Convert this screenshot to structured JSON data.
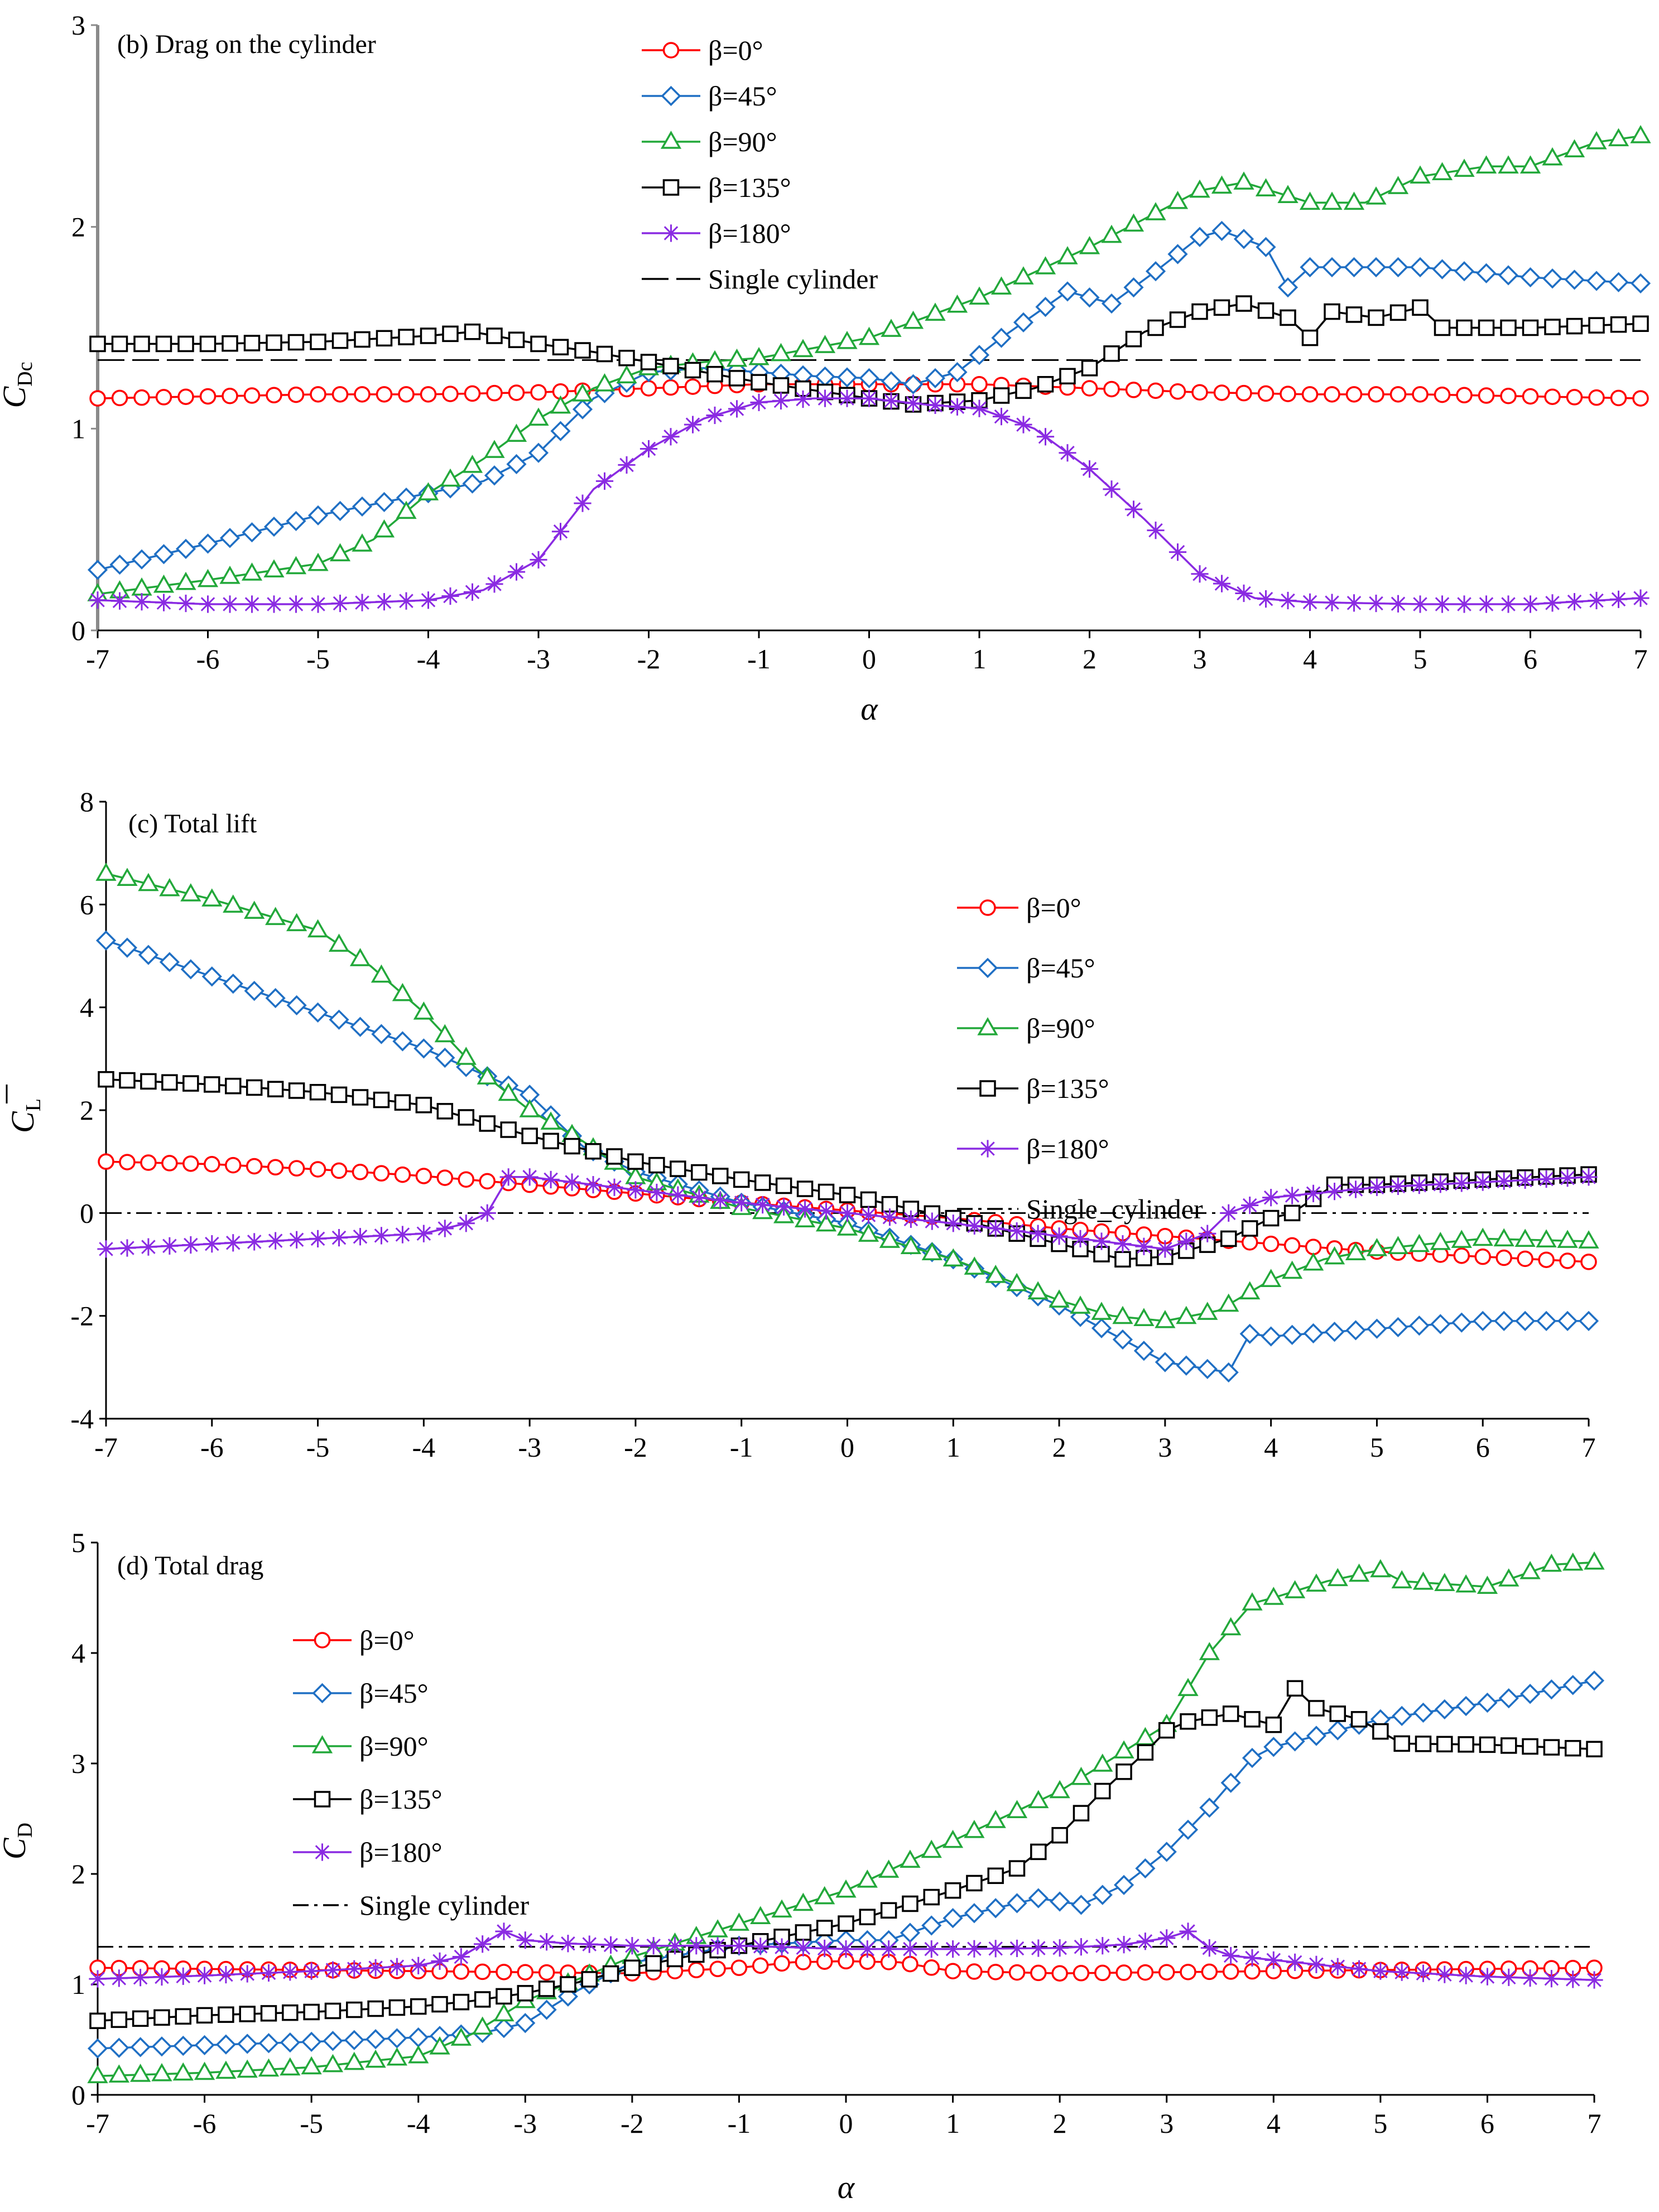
{
  "chart_data": [
    {
      "type": "line",
      "title": "(b) Drag on the cylinder",
      "xlabel": "α",
      "ylabel_main": "C",
      "ylabel_sub": "Dc",
      "xlim": [
        -7,
        7
      ],
      "ylim": [
        0,
        3
      ],
      "xticks": [
        "-7",
        "-6",
        "-5",
        "-4",
        "-3",
        "-2",
        "-1",
        "0",
        "1",
        "2",
        "3",
        "4",
        "5",
        "6",
        "7"
      ],
      "yticks": [
        "0",
        "1",
        "2",
        "3"
      ],
      "legend_position": "top-center",
      "reference": {
        "name": "Single cylinder",
        "value": 1.34,
        "style": "dash"
      },
      "series": [
        {
          "name": "β=0°",
          "color": "#ff0000",
          "marker": "circle",
          "x": [
            -7,
            -6,
            -5,
            -4,
            -3,
            -2,
            -1,
            0,
            1,
            2,
            3,
            4,
            5,
            6,
            7
          ],
          "y": [
            1.15,
            1.16,
            1.17,
            1.17,
            1.18,
            1.2,
            1.22,
            1.22,
            1.22,
            1.2,
            1.18,
            1.17,
            1.17,
            1.16,
            1.15
          ]
        },
        {
          "name": "β=45°",
          "color": "#1f6fc4",
          "marker": "diamond",
          "x": [
            -7,
            -6,
            -5,
            -4,
            -3.5,
            -3,
            -2.5,
            -2,
            -1.5,
            -1,
            -0.5,
            0,
            0.4,
            0.8,
            1.2,
            1.8,
            2.2,
            2.6,
            3.0,
            3.2,
            3.6,
            3.8,
            4,
            5,
            6,
            7
          ],
          "y": [
            0.3,
            0.43,
            0.57,
            0.68,
            0.74,
            0.88,
            1.15,
            1.28,
            1.3,
            1.28,
            1.26,
            1.25,
            1.22,
            1.28,
            1.45,
            1.68,
            1.62,
            1.78,
            1.95,
            1.98,
            1.9,
            1.7,
            1.8,
            1.8,
            1.75,
            1.72
          ]
        },
        {
          "name": "β=90°",
          "color": "#22a83a",
          "marker": "triangle",
          "x": [
            -7,
            -6,
            -5,
            -4.5,
            -4,
            -3.5,
            -3,
            -2.5,
            -2,
            -1.5,
            -1,
            0,
            1,
            2,
            3,
            3.4,
            4,
            4.5,
            5,
            5.6,
            6,
            6.6,
            7
          ],
          "y": [
            0.18,
            0.25,
            0.33,
            0.45,
            0.68,
            0.85,
            1.05,
            1.2,
            1.3,
            1.33,
            1.35,
            1.45,
            1.65,
            1.9,
            2.18,
            2.22,
            2.12,
            2.12,
            2.25,
            2.3,
            2.3,
            2.42,
            2.45
          ]
        },
        {
          "name": "β=135°",
          "color": "#000000",
          "marker": "square",
          "x": [
            -7,
            -6,
            -5,
            -4,
            -3.6,
            -3,
            -2.5,
            -2,
            -1,
            0,
            0.4,
            1,
            1.5,
            2,
            2.5,
            3,
            3.4,
            3.8,
            4,
            4.2,
            4.6,
            5,
            5.2,
            6,
            7
          ],
          "y": [
            1.42,
            1.42,
            1.43,
            1.46,
            1.48,
            1.42,
            1.38,
            1.33,
            1.23,
            1.15,
            1.12,
            1.14,
            1.2,
            1.3,
            1.48,
            1.58,
            1.62,
            1.55,
            1.45,
            1.58,
            1.55,
            1.6,
            1.5,
            1.5,
            1.52
          ]
        },
        {
          "name": "β=180°",
          "color": "#8a2be2",
          "marker": "star",
          "x": [
            -7,
            -6,
            -5,
            -4,
            -3.5,
            -3,
            -2.5,
            -2,
            -1.5,
            -1,
            -0.5,
            0,
            0.5,
            1,
            1.5,
            2,
            2.5,
            3,
            3.5,
            4,
            5,
            6,
            7
          ],
          "y": [
            0.15,
            0.13,
            0.13,
            0.15,
            0.2,
            0.35,
            0.7,
            0.9,
            1.05,
            1.13,
            1.15,
            1.15,
            1.12,
            1.1,
            1.0,
            0.8,
            0.55,
            0.28,
            0.16,
            0.14,
            0.13,
            0.13,
            0.16
          ]
        }
      ]
    },
    {
      "type": "line",
      "title": "(c) Total lift",
      "xlabel": "",
      "ylabel_main": "C",
      "ylabel_sub": "L",
      "xlim": [
        -7,
        7
      ],
      "ylim": [
        -4,
        8
      ],
      "xticks": [
        "-7",
        "-6",
        "-5",
        "-4",
        "-3",
        "-2",
        "-1",
        "0",
        "1",
        "2",
        "3",
        "4",
        "5",
        "6",
        "7"
      ],
      "yticks": [
        "-4",
        "-2",
        "0",
        "2",
        "4",
        "6",
        "8"
      ],
      "legend_position": "top-right",
      "reference": {
        "name": "Single_cylinder",
        "value": 0,
        "style": "dashdot"
      },
      "series": [
        {
          "name": "β=0°",
          "color": "#ff0000",
          "marker": "circle",
          "x": [
            -7,
            -6,
            -5,
            -4,
            -3,
            -2,
            -1,
            0,
            1,
            2,
            3,
            4,
            5,
            6,
            7
          ],
          "y": [
            1.0,
            0.95,
            0.85,
            0.72,
            0.55,
            0.38,
            0.2,
            0.05,
            -0.1,
            -0.3,
            -0.45,
            -0.6,
            -0.75,
            -0.85,
            -0.95
          ]
        },
        {
          "name": "β=45°",
          "color": "#1f6fc4",
          "marker": "diamond",
          "x": [
            -7,
            -6,
            -5,
            -4,
            -3,
            -2.5,
            -2,
            -1,
            0,
            1,
            2,
            3,
            3.6,
            3.8,
            4,
            5,
            6,
            7
          ],
          "y": [
            5.3,
            4.6,
            3.9,
            3.2,
            2.3,
            1.3,
            0.8,
            0.2,
            -0.2,
            -0.9,
            -1.8,
            -2.9,
            -3.1,
            -2.35,
            -2.4,
            -2.25,
            -2.1,
            -2.1
          ]
        },
        {
          "name": "β=90°",
          "color": "#22a83a",
          "marker": "triangle",
          "x": [
            -7,
            -6,
            -5,
            -4.5,
            -4,
            -3.5,
            -3,
            -2.5,
            -2,
            -1,
            0,
            1,
            2,
            2.5,
            3,
            3.5,
            4,
            4.5,
            5,
            6,
            7
          ],
          "y": [
            6.6,
            6.1,
            5.5,
            4.8,
            3.9,
            2.8,
            2.0,
            1.4,
            0.7,
            0.1,
            -0.3,
            -0.9,
            -1.7,
            -2.0,
            -2.1,
            -1.9,
            -1.3,
            -0.9,
            -0.7,
            -0.5,
            -0.55
          ]
        },
        {
          "name": "β=135°",
          "color": "#000000",
          "marker": "square",
          "x": [
            -7,
            -6,
            -5,
            -4,
            -3,
            -2,
            -1,
            0,
            1,
            2,
            2.6,
            3,
            3.6,
            4,
            4.2,
            4.6,
            5,
            6,
            7
          ],
          "y": [
            2.6,
            2.5,
            2.35,
            2.1,
            1.5,
            1.0,
            0.65,
            0.35,
            -0.1,
            -0.6,
            -0.9,
            -0.85,
            -0.5,
            -0.1,
            0.0,
            0.55,
            0.55,
            0.65,
            0.75
          ]
        },
        {
          "name": "β=180°",
          "color": "#8a2be2",
          "marker": "star",
          "x": [
            -7,
            -6,
            -5,
            -4,
            -3.6,
            -3.4,
            -3.2,
            -3,
            -2,
            -1,
            0,
            1,
            2,
            3,
            3.4,
            3.6,
            4,
            5,
            6,
            7
          ],
          "y": [
            -0.7,
            -0.6,
            -0.5,
            -0.4,
            -0.2,
            0.0,
            0.7,
            0.7,
            0.45,
            0.2,
            0.0,
            -0.2,
            -0.45,
            -0.7,
            -0.4,
            0.0,
            0.3,
            0.5,
            0.6,
            0.7
          ]
        }
      ]
    },
    {
      "type": "line",
      "title": "(d) Total drag",
      "xlabel": "α",
      "ylabel_main": "C",
      "ylabel_sub": "D",
      "xlim": [
        -7,
        7
      ],
      "ylim": [
        0,
        5
      ],
      "xticks": [
        "-7",
        "-6",
        "-5",
        "-4",
        "-3",
        "-2",
        "-1",
        "0",
        "1",
        "2",
        "3",
        "4",
        "5",
        "6",
        "7"
      ],
      "yticks": [
        "0",
        "1",
        "2",
        "3",
        "4",
        "5"
      ],
      "legend_position": "left",
      "reference": {
        "name": "Single cylinder",
        "value": 1.34,
        "style": "dashdot"
      },
      "series": [
        {
          "name": "β=0°",
          "color": "#ff0000",
          "marker": "circle",
          "x": [
            -7,
            -6,
            -5,
            -4,
            -3,
            -2,
            -1,
            -0.5,
            0,
            0.5,
            1,
            2,
            3,
            4,
            5,
            6,
            7
          ],
          "y": [
            1.15,
            1.14,
            1.13,
            1.12,
            1.11,
            1.1,
            1.15,
            1.2,
            1.21,
            1.2,
            1.12,
            1.1,
            1.11,
            1.12,
            1.13,
            1.14,
            1.15
          ]
        },
        {
          "name": "β=45°",
          "color": "#1f6fc4",
          "marker": "diamond",
          "x": [
            -7,
            -6,
            -5,
            -4,
            -3.4,
            -3,
            -2.5,
            -2,
            -1,
            0,
            0.4,
            1,
            1.8,
            2.2,
            2.6,
            3,
            3.4,
            3.8,
            4,
            5,
            6,
            7
          ],
          "y": [
            0.42,
            0.45,
            0.48,
            0.52,
            0.56,
            0.65,
            0.95,
            1.2,
            1.35,
            1.4,
            1.4,
            1.6,
            1.78,
            1.72,
            1.9,
            2.2,
            2.6,
            3.05,
            3.15,
            3.4,
            3.55,
            3.75
          ]
        },
        {
          "name": "β=90°",
          "color": "#22a83a",
          "marker": "triangle",
          "x": [
            -7,
            -6,
            -5,
            -4,
            -3.5,
            -3,
            -2.5,
            -2,
            -1,
            0,
            1,
            2,
            2.5,
            3,
            3.4,
            3.8,
            4,
            4.5,
            5,
            5.2,
            6,
            6.6,
            7
          ],
          "y": [
            0.17,
            0.2,
            0.25,
            0.35,
            0.55,
            0.85,
            1.05,
            1.25,
            1.55,
            1.85,
            2.3,
            2.75,
            3.05,
            3.35,
            4.0,
            4.45,
            4.5,
            4.65,
            4.75,
            4.65,
            4.6,
            4.8,
            4.82
          ]
        },
        {
          "name": "β=135°",
          "color": "#000000",
          "marker": "square",
          "x": [
            -7,
            -6,
            -5,
            -4,
            -3.5,
            -3,
            -2.5,
            -2,
            -1,
            0,
            1,
            1.6,
            2,
            2.4,
            2.8,
            3,
            3.2,
            3.6,
            4,
            4.2,
            4.4,
            4.8,
            5.2,
            6,
            7
          ],
          "y": [
            0.67,
            0.72,
            0.75,
            0.8,
            0.85,
            0.92,
            1.02,
            1.15,
            1.35,
            1.55,
            1.85,
            2.05,
            2.35,
            2.75,
            3.1,
            3.3,
            3.38,
            3.45,
            3.35,
            3.68,
            3.5,
            3.4,
            3.18,
            3.17,
            3.13
          ]
        },
        {
          "name": "β=180°",
          "color": "#8a2be2",
          "marker": "star",
          "x": [
            -7,
            -6,
            -5,
            -4,
            -3.6,
            -3.2,
            -3,
            -2.6,
            -2,
            -1,
            0,
            1,
            2,
            2.6,
            3,
            3.2,
            3.4,
            3.6,
            4,
            5,
            6,
            7
          ],
          "y": [
            1.05,
            1.08,
            1.12,
            1.17,
            1.25,
            1.48,
            1.4,
            1.37,
            1.35,
            1.35,
            1.32,
            1.32,
            1.33,
            1.36,
            1.42,
            1.48,
            1.33,
            1.26,
            1.22,
            1.12,
            1.07,
            1.04
          ]
        }
      ]
    }
  ]
}
